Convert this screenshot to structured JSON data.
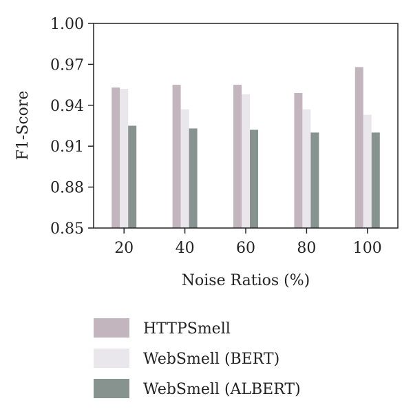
{
  "chart_data": {
    "type": "bar",
    "title": "",
    "xlabel": "Noise Ratios (%)",
    "ylabel": "F1-Score",
    "categories": [
      "20",
      "40",
      "60",
      "80",
      "100"
    ],
    "ylim": [
      0.85,
      1.0
    ],
    "yticks": [
      "0.85",
      "0.88",
      "0.91",
      "0.94",
      "0.97",
      "1.00"
    ],
    "ytick_values": [
      0.85,
      0.88,
      0.91,
      0.94,
      0.97,
      1.0
    ],
    "grid": false,
    "legend_position": "bottom",
    "series": [
      {
        "name": "HTTPSmell",
        "color": "#c3b5be",
        "values": [
          0.953,
          0.955,
          0.955,
          0.949,
          0.968
        ]
      },
      {
        "name": "WebSmell (BERT)",
        "color": "#e9e7ec",
        "values": [
          0.952,
          0.937,
          0.948,
          0.937,
          0.933
        ]
      },
      {
        "name": "WebSmell (ALBERT)",
        "color": "#87938f",
        "values": [
          0.925,
          0.923,
          0.922,
          0.92,
          0.92
        ]
      }
    ]
  }
}
